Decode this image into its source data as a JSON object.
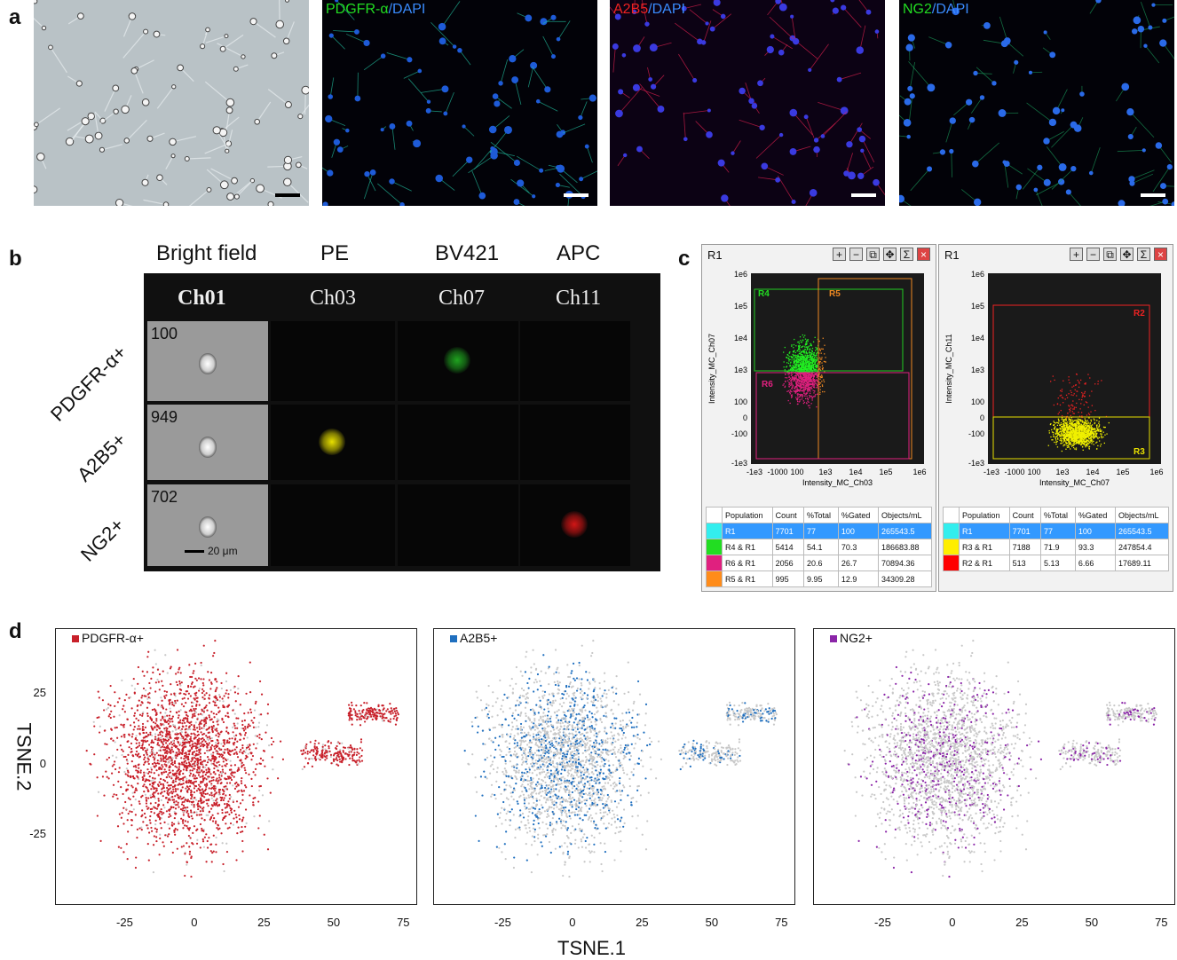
{
  "panel_labels": {
    "a": "a",
    "b": "b",
    "c": "c",
    "d": "d"
  },
  "panel_a": {
    "images": [
      {
        "label": "",
        "type": "bright-field"
      },
      {
        "label_parts": [
          {
            "text": "PDGFR-α",
            "color": "#22dd22"
          },
          {
            "text": "/DAPI",
            "color": "#3a8cff"
          }
        ]
      },
      {
        "label_parts": [
          {
            "text": "A2B5",
            "color": "#ee2222"
          },
          {
            "text": "/DAPI",
            "color": "#3a8cff"
          }
        ]
      },
      {
        "label_parts": [
          {
            "text": "NG2",
            "color": "#22dd22"
          },
          {
            "text": "/DAPI",
            "color": "#3a8cff"
          }
        ]
      }
    ]
  },
  "panel_b": {
    "column_headers": [
      "Bright field",
      "PE",
      "BV421",
      "APC"
    ],
    "channels": [
      "Ch01",
      "Ch03",
      "Ch07",
      "Ch11"
    ],
    "rows": [
      {
        "label": "PDGFR-α+",
        "object_id": "100",
        "signal_channel": "Ch07",
        "signal_color": "#1fa31f"
      },
      {
        "label": "A2B5+",
        "object_id": "949",
        "signal_channel": "Ch03",
        "signal_color": "#e8e000"
      },
      {
        "label": "NG2+",
        "object_id": "702",
        "signal_channel": "Ch11",
        "signal_color": "#d21616"
      }
    ],
    "scale_bar": "20 μm"
  },
  "panel_c": {
    "windows": [
      {
        "title": "R1",
        "xlabel": "Intensity_MC_Ch03",
        "ylabel": "Intensity_MC_Ch07",
        "x_ticks": [
          "-1e3",
          "-1000",
          "100",
          "1e3",
          "1e4",
          "1e5",
          "1e6"
        ],
        "y_ticks": [
          "1e6",
          "1e5",
          "1e4",
          "1e3",
          "100",
          "0",
          "-100",
          "-1e3"
        ],
        "gates": [
          {
            "name": "R4",
            "color": "#22dd22"
          },
          {
            "name": "R5",
            "color": "#ee8822"
          },
          {
            "name": "R6",
            "color": "#e0207f"
          }
        ],
        "table": {
          "headers": [
            "Population",
            "Count",
            "%Total",
            "%Gated",
            "Objects/mL"
          ],
          "rows": [
            {
              "color": "#33eeee",
              "cells": [
                "R1",
                "7701",
                "77",
                "100",
                "265543.5"
              ]
            },
            {
              "color": "#22dd22",
              "cells": [
                "R4 & R1",
                "5414",
                "54.1",
                "70.3",
                "186683.88"
              ]
            },
            {
              "color": "#e0207f",
              "cells": [
                "R6 & R1",
                "2056",
                "20.6",
                "26.7",
                "70894.36"
              ]
            },
            {
              "color": "#ff8c1a",
              "cells": [
                "R5 & R1",
                "995",
                "9.95",
                "12.9",
                "34309.28"
              ]
            }
          ]
        }
      },
      {
        "title": "R1",
        "xlabel": "Intensity_MC_Ch07",
        "ylabel": "Intensity_MC_Ch11",
        "x_ticks": [
          "-1e3",
          "-1000",
          "100",
          "1e3",
          "1e4",
          "1e5",
          "1e6"
        ],
        "y_ticks": [
          "1e6",
          "1e5",
          "1e4",
          "1e3",
          "100",
          "0",
          "-100",
          "-1e3"
        ],
        "gates": [
          {
            "name": "R2",
            "color": "#ee2222"
          },
          {
            "name": "R3",
            "color": "#e8e000"
          }
        ],
        "table": {
          "headers": [
            "Population",
            "Count",
            "%Total",
            "%Gated",
            "Objects/mL"
          ],
          "rows": [
            {
              "color": "#33eeee",
              "cells": [
                "R1",
                "7701",
                "77",
                "100",
                "265543.5"
              ]
            },
            {
              "color": "#ffee00",
              "cells": [
                "R3 & R1",
                "7188",
                "71.9",
                "93.3",
                "247854.4"
              ]
            },
            {
              "color": "#ff0000",
              "cells": [
                "R2 & R1",
                "513",
                "5.13",
                "6.66",
                "17689.11"
              ]
            }
          ]
        }
      }
    ]
  },
  "chart_data": [
    {
      "type": "scatter",
      "title": "",
      "xlabel": "TSNE.1",
      "ylabel": "TSNE.2",
      "xlim": [
        -50,
        80
      ],
      "ylim": [
        -50,
        48
      ],
      "x_ticks": [
        "-25",
        "0",
        "25",
        "50",
        "75"
      ],
      "y_ticks": [
        "25",
        "0",
        "-25"
      ],
      "legend_placement": "top-left",
      "plots": [
        {
          "legend": "PDGFR-α+",
          "color": "#c8202a",
          "highlight_density": "high"
        },
        {
          "legend": "A2B5+",
          "color": "#1f6fbf",
          "highlight_density": "medium"
        },
        {
          "legend": "NG2+",
          "color": "#8b25a8",
          "highlight_density": "low"
        }
      ],
      "background_color": "#c8c8c8"
    }
  ]
}
